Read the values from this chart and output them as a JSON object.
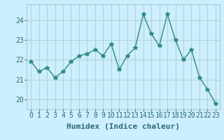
{
  "x": [
    0,
    1,
    2,
    3,
    4,
    5,
    6,
    7,
    8,
    9,
    10,
    11,
    12,
    13,
    14,
    15,
    16,
    17,
    18,
    19,
    20,
    21,
    22,
    23
  ],
  "y": [
    21.9,
    21.4,
    21.6,
    21.1,
    21.4,
    21.9,
    22.2,
    22.3,
    22.5,
    22.2,
    22.8,
    21.5,
    22.2,
    22.6,
    24.3,
    23.3,
    22.7,
    24.3,
    23.0,
    22.0,
    22.5,
    21.1,
    20.5,
    19.8
  ],
  "line_color": "#2d8b7a",
  "marker": "*",
  "marker_size": 4,
  "xlabel": "Humidex (Indice chaleur)",
  "ylim": [
    19.5,
    24.8
  ],
  "yticks": [
    20,
    21,
    22,
    23,
    24
  ],
  "xticks": [
    0,
    1,
    2,
    3,
    4,
    5,
    6,
    7,
    8,
    9,
    10,
    11,
    12,
    13,
    14,
    15,
    16,
    17,
    18,
    19,
    20,
    21,
    22,
    23
  ],
  "bg_color": "#cceeff",
  "grid_color": "#aacccc",
  "tick_color": "#2d6b6e",
  "label_color": "#2d6b6e",
  "xlabel_fontsize": 8,
  "tick_fontsize": 7
}
